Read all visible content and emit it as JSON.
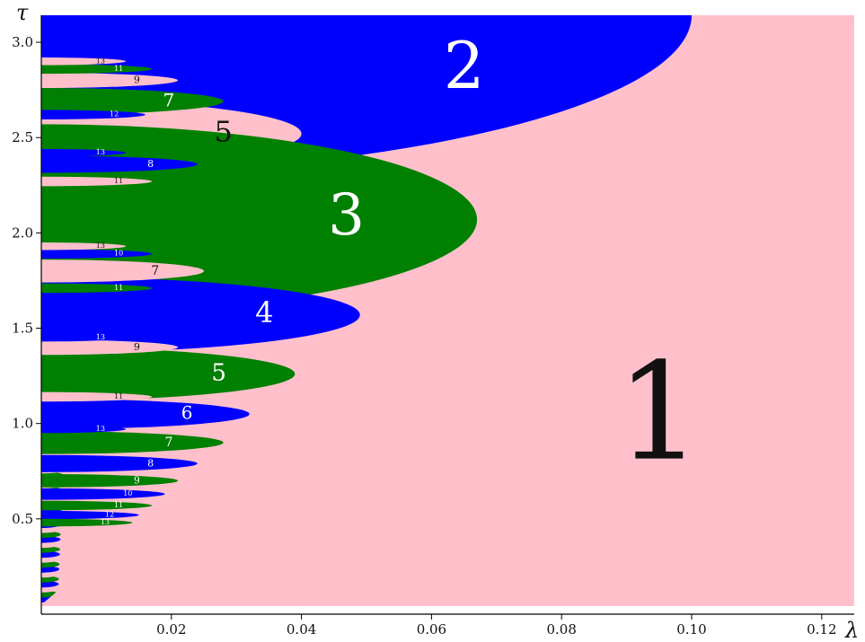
{
  "chart_data": {
    "type": "heatmap",
    "title": "",
    "xlabel": "λ",
    "ylabel": "τ",
    "xlim": [
      0,
      0.125
    ],
    "ylim": [
      0,
      3.14159
    ],
    "x_ticks": [
      0.02,
      0.04,
      0.06,
      0.08,
      0.1,
      0.12
    ],
    "x_tick_labels": [
      "0.02",
      "0.04",
      "0.06",
      "0.08",
      "0.10",
      "0.12"
    ],
    "y_ticks": [
      0.5,
      1.0,
      1.5,
      2.0,
      2.5,
      3.0
    ],
    "y_tick_labels": [
      "0.5",
      "1.0",
      "1.5",
      "2.0",
      "2.5",
      "3.0"
    ],
    "grid": false,
    "colors": {
      "background": "#ffc0cb",
      "blue": "#0000ff",
      "green": "#008000",
      "pink": "#ffc0cb",
      "axis": "#000000"
    },
    "regions": [
      {
        "label": "2",
        "color": "blue",
        "tau_range": [
          2.3,
          3.14159
        ],
        "lambda_max": 0.1
      },
      {
        "label": "5",
        "color": "pink",
        "tau_center": 2.52,
        "half_height": 0.18,
        "lambda_max": 0.04
      },
      {
        "label": "3",
        "color": "green",
        "tau_center": 2.07,
        "half_height": 0.5,
        "lambda_max": 0.067
      },
      {
        "label": "4",
        "color": "blue",
        "tau_center": 1.57,
        "half_height": 0.2,
        "lambda_max": 0.049
      },
      {
        "label": "7",
        "color": "pink",
        "tau_center": 1.8,
        "half_height": 0.06,
        "lambda_max": 0.025
      },
      {
        "label": "5",
        "color": "green",
        "tau_center": 1.26,
        "half_height": 0.14,
        "lambda_max": 0.039
      },
      {
        "label": "6",
        "color": "blue",
        "tau_center": 1.05,
        "half_height": 0.08,
        "lambda_max": 0.032
      },
      {
        "label": "7",
        "color": "green",
        "tau_center": 0.9,
        "half_height": 0.06,
        "lambda_max": 0.028
      },
      {
        "label": "8",
        "color": "blue",
        "tau_center": 0.79,
        "half_height": 0.045,
        "lambda_max": 0.024
      },
      {
        "label": "9",
        "color": "green",
        "tau_center": 0.7,
        "half_height": 0.035,
        "lambda_max": 0.021
      },
      {
        "label": "10",
        "color": "blue",
        "tau_center": 0.63,
        "half_height": 0.03,
        "lambda_max": 0.019
      },
      {
        "label": "11",
        "color": "green",
        "tau_center": 0.57,
        "half_height": 0.025,
        "lambda_max": 0.017
      },
      {
        "label": "12",
        "color": "blue",
        "tau_center": 0.52,
        "half_height": 0.022,
        "lambda_max": 0.015
      },
      {
        "label": "13",
        "color": "green",
        "tau_center": 0.48,
        "half_height": 0.02,
        "lambda_max": 0.014
      },
      {
        "label": "7",
        "color": "green",
        "tau_center": 2.69,
        "half_height": 0.07,
        "lambda_max": 0.028
      },
      {
        "label": "8",
        "color": "blue",
        "tau_center": 2.36,
        "half_height": 0.045,
        "lambda_max": 0.024
      },
      {
        "label": "9",
        "color": "pink",
        "tau_center": 1.4,
        "half_height": 0.04,
        "lambda_max": 0.021
      },
      {
        "label": "9",
        "color": "pink",
        "tau_center": 2.8,
        "half_height": 0.04,
        "lambda_max": 0.021
      },
      {
        "label": "11",
        "color": "pink",
        "tau_center": 2.27,
        "half_height": 0.025,
        "lambda_max": 0.017
      },
      {
        "label": "11",
        "color": "green",
        "tau_center": 1.71,
        "half_height": 0.025,
        "lambda_max": 0.017
      },
      {
        "label": "11",
        "color": "pink",
        "tau_center": 1.14,
        "half_height": 0.025,
        "lambda_max": 0.017
      },
      {
        "label": "11",
        "color": "green",
        "tau_center": 2.86,
        "half_height": 0.025,
        "lambda_max": 0.017
      },
      {
        "label": "10",
        "color": "blue",
        "tau_center": 1.89,
        "half_height": 0.025,
        "lambda_max": 0.017
      },
      {
        "label": "12",
        "color": "blue",
        "tau_center": 2.62,
        "half_height": 0.025,
        "lambda_max": 0.016
      },
      {
        "label": "13",
        "color": "pink",
        "tau_center": 1.93,
        "half_height": 0.02,
        "lambda_max": 0.013
      },
      {
        "label": "13",
        "color": "blue",
        "tau_center": 1.45,
        "half_height": 0.02,
        "lambda_max": 0.013
      },
      {
        "label": "13",
        "color": "blue",
        "tau_center": 0.97,
        "half_height": 0.02,
        "lambda_max": 0.013
      },
      {
        "label": "13",
        "color": "blue",
        "tau_center": 2.42,
        "half_height": 0.02,
        "lambda_max": 0.013
      },
      {
        "label": "13",
        "color": "pink",
        "tau_center": 2.9,
        "half_height": 0.02,
        "lambda_max": 0.013
      },
      {
        "label": "1",
        "color": "pink",
        "label_at": [
          0.095,
          1.0
        ]
      }
    ]
  }
}
